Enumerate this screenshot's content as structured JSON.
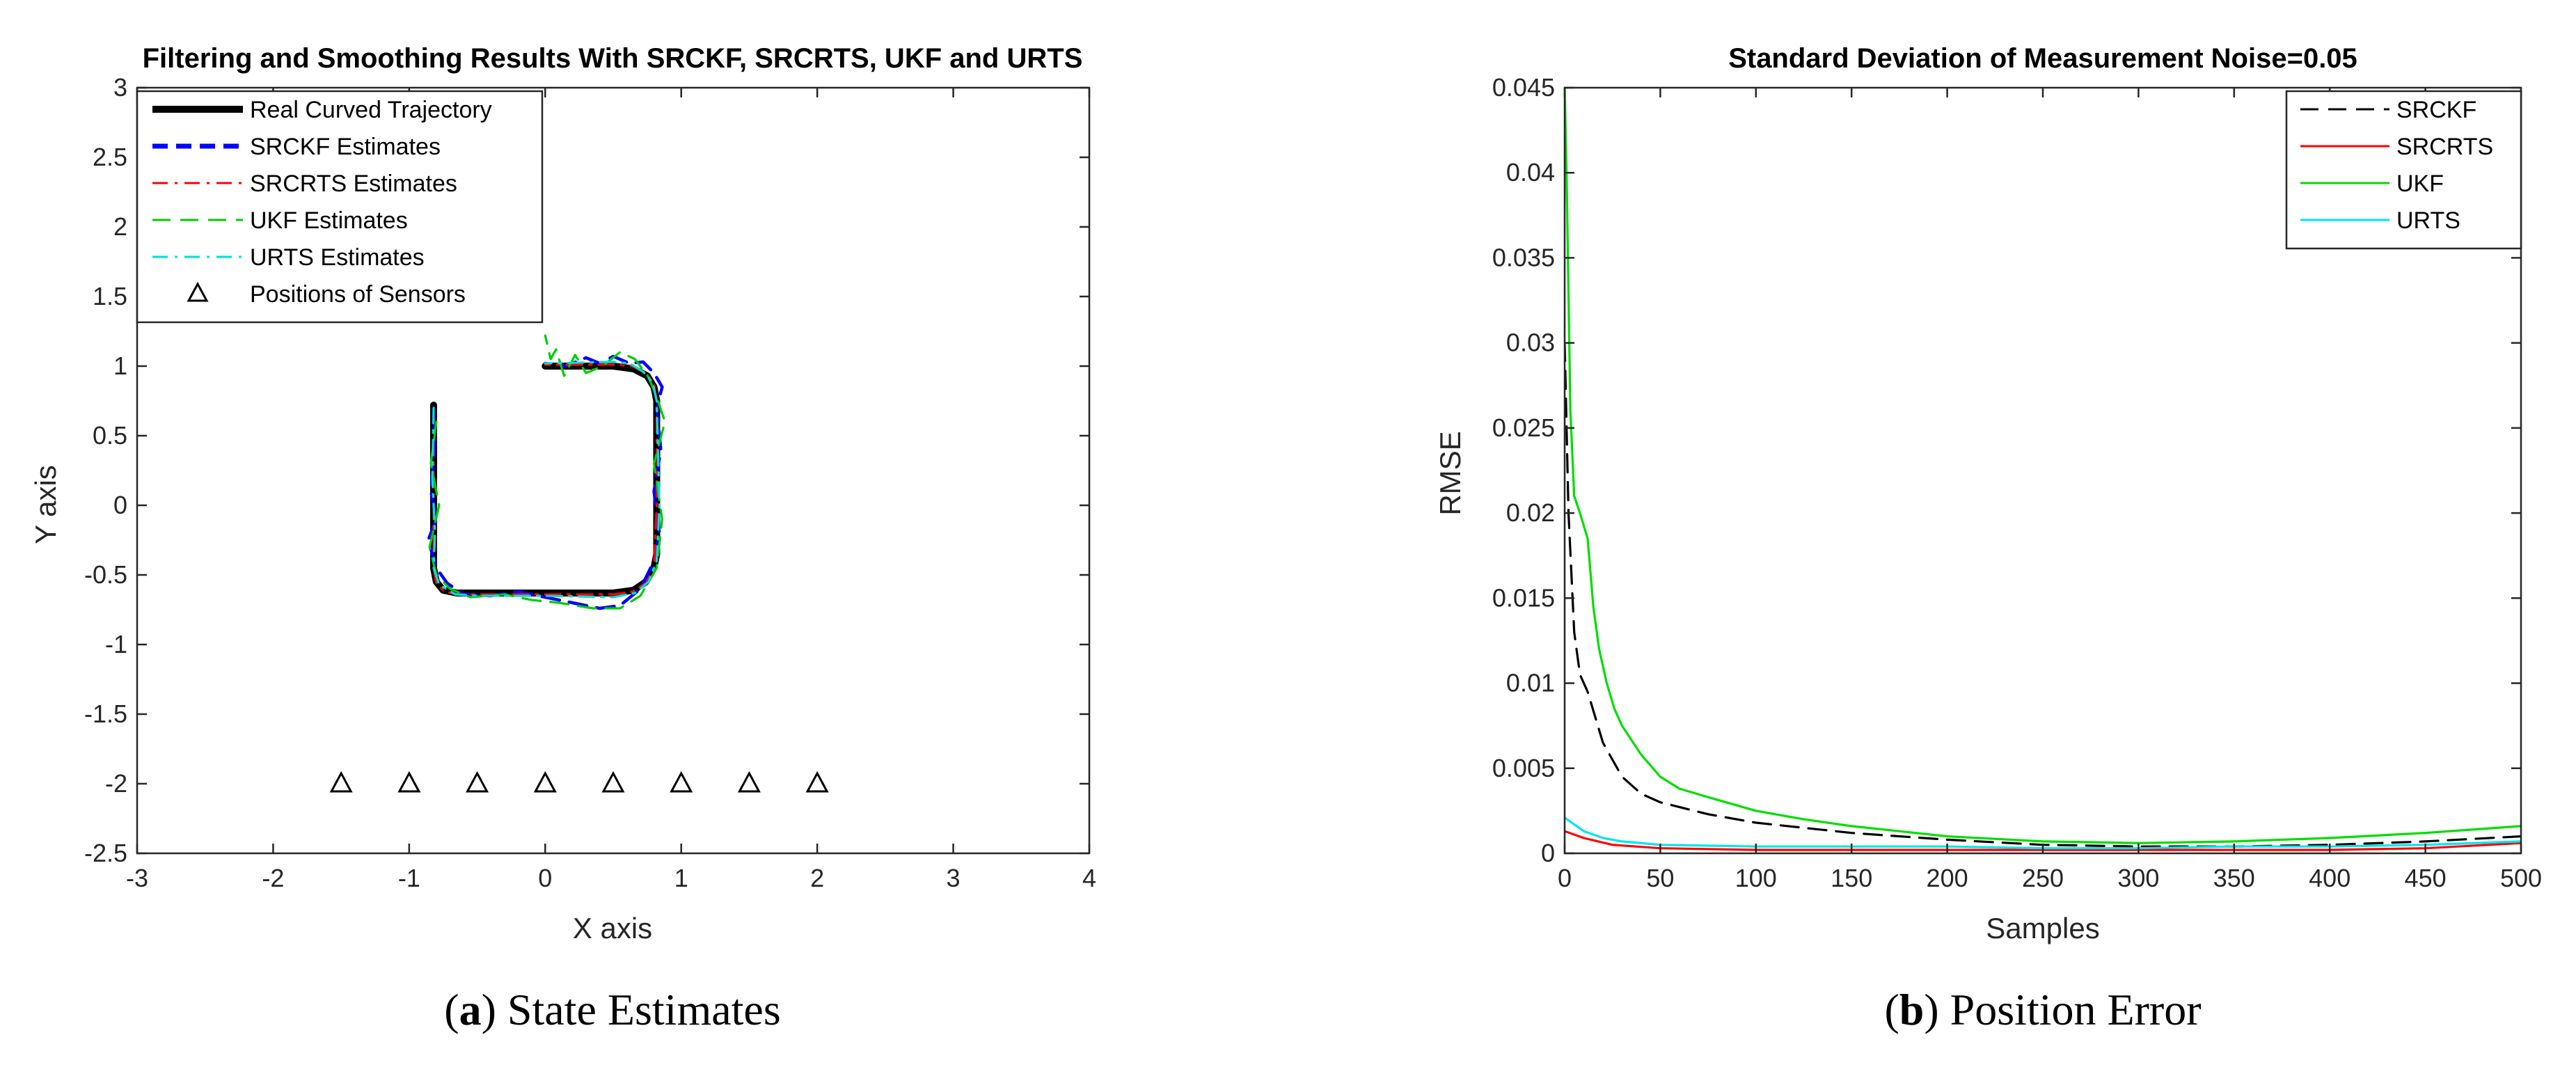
{
  "chart_data": [
    {
      "type": "line",
      "title": "Filtering and Smoothing Results With SRCKF, SRCRTS, UKF and URTS",
      "xlabel": "X axis",
      "ylabel": "Y axis",
      "xlim": [
        -3,
        4
      ],
      "ylim": [
        -2.5,
        3
      ],
      "xticks": [
        "-3",
        "-2",
        "-1",
        "0",
        "1",
        "2",
        "3",
        "4"
      ],
      "yticks": [
        "-2.5",
        "-2",
        "-1.5",
        "-1",
        "-0.5",
        "0",
        "0.5",
        "1",
        "1.5",
        "2",
        "2.5",
        "3"
      ],
      "grid": false,
      "legend_position": "top-left",
      "caption_label": "a",
      "caption_text": "State Estimates",
      "series": [
        {
          "name": "Real Curved Trajectory",
          "color": "#000000",
          "style": "solid",
          "x": [
            -0.82,
            -0.82,
            -0.82,
            -0.8,
            -0.75,
            -0.65,
            -0.5,
            0.0,
            0.5,
            0.65,
            0.74,
            0.8,
            0.82,
            0.82,
            0.82,
            0.8,
            0.75,
            0.65,
            0.5,
            0.0
          ],
          "y": [
            0.72,
            0.0,
            -0.45,
            -0.55,
            -0.61,
            -0.63,
            -0.63,
            -0.63,
            -0.63,
            -0.61,
            -0.55,
            -0.45,
            -0.35,
            0.0,
            0.75,
            0.85,
            0.93,
            0.98,
            1.0,
            1.0
          ]
        },
        {
          "name": "SRCKF Estimates",
          "color": "#0000ff",
          "style": "dashed",
          "x": [
            -0.82,
            -0.81,
            -0.84,
            -0.8,
            -0.86,
            -0.8,
            -0.72,
            -0.6,
            -0.4,
            -0.2,
            0.0,
            0.2,
            0.4,
            0.55,
            0.7,
            0.8,
            0.84,
            0.8,
            0.85,
            0.82,
            0.86,
            0.8,
            0.72,
            0.62,
            0.5,
            0.4,
            0.3,
            0.15,
            0.0
          ],
          "y": [
            0.68,
            0.4,
            0.1,
            -0.1,
            -0.25,
            -0.45,
            -0.56,
            -0.64,
            -0.65,
            -0.62,
            -0.66,
            -0.7,
            -0.74,
            -0.72,
            -0.6,
            -0.4,
            -0.2,
            0.1,
            0.4,
            0.7,
            0.85,
            0.95,
            1.03,
            1.02,
            1.07,
            1.02,
            1.06,
            1.0,
            1.02
          ]
        },
        {
          "name": "SRCRTS Estimates",
          "color": "#ff0000",
          "style": "dashdot",
          "x": [
            -0.82,
            -0.82,
            -0.82,
            -0.8,
            -0.74,
            -0.64,
            -0.5,
            0.0,
            0.5,
            0.64,
            0.74,
            0.8,
            0.82,
            0.82,
            0.8,
            0.74,
            0.64,
            0.5,
            0.0
          ],
          "y": [
            0.7,
            0.0,
            -0.45,
            -0.56,
            -0.62,
            -0.64,
            -0.64,
            -0.64,
            -0.64,
            -0.62,
            -0.56,
            -0.45,
            0.0,
            0.75,
            0.87,
            0.95,
            1.0,
            1.01,
            1.01
          ]
        },
        {
          "name": "UKF Estimates",
          "color": "#00cc00",
          "style": "dashed",
          "x": [
            -0.8,
            -0.84,
            -0.78,
            -0.85,
            -0.8,
            -0.7,
            -0.55,
            -0.3,
            -0.1,
            0.1,
            0.35,
            0.55,
            0.7,
            0.82,
            0.86,
            0.8,
            0.88,
            0.82,
            0.76,
            0.66,
            0.55,
            0.42,
            0.3,
            0.22,
            0.14,
            0.08,
            0.04,
            0.0
          ],
          "y": [
            0.6,
            0.3,
            0.0,
            -0.3,
            -0.5,
            -0.6,
            -0.66,
            -0.64,
            -0.68,
            -0.7,
            -0.74,
            -0.74,
            -0.65,
            -0.45,
            -0.1,
            0.3,
            0.6,
            0.78,
            0.92,
            1.05,
            1.1,
            1.0,
            0.95,
            1.08,
            0.93,
            1.12,
            1.05,
            1.22
          ]
        },
        {
          "name": "URTS Estimates",
          "color": "#00dddd",
          "style": "dashdot",
          "x": [
            -0.82,
            -0.83,
            -0.81,
            -0.82,
            -0.78,
            -0.66,
            -0.5,
            0.0,
            0.5,
            0.66,
            0.76,
            0.82,
            0.84,
            0.82,
            0.79,
            0.72,
            0.62,
            0.5,
            0.0
          ],
          "y": [
            0.7,
            0.2,
            -0.2,
            -0.45,
            -0.57,
            -0.64,
            -0.65,
            -0.65,
            -0.66,
            -0.63,
            -0.55,
            -0.4,
            0.0,
            0.75,
            0.88,
            0.96,
            1.02,
            1.03,
            1.02
          ]
        },
        {
          "name": "Positions of Sensors",
          "color": "#000000",
          "style": "markers",
          "marker": "triangle",
          "x": [
            -1.5,
            -1.0,
            -0.5,
            0.0,
            0.5,
            1.0,
            1.5,
            2.0
          ],
          "y": [
            -2,
            -2,
            -2,
            -2,
            -2,
            -2,
            -2,
            -2
          ]
        }
      ]
    },
    {
      "type": "line",
      "title": "Standard Deviation of Measurement Noise=0.05",
      "xlabel": "Samples",
      "ylabel": "RMSE",
      "xlim": [
        0,
        500
      ],
      "ylim": [
        0,
        0.045
      ],
      "xticks": [
        "0",
        "50",
        "100",
        "150",
        "200",
        "250",
        "300",
        "350",
        "400",
        "450",
        "500"
      ],
      "yticks": [
        "0",
        "0.005",
        "0.01",
        "0.015",
        "0.02",
        "0.025",
        "0.03",
        "0.035",
        "0.04",
        "0.045"
      ],
      "grid": false,
      "legend_position": "top-right",
      "caption_label": "b",
      "caption_text": "Position Error",
      "series": [
        {
          "name": "SRCKF",
          "color": "#000000",
          "style": "dashed",
          "x": [
            0,
            2,
            5,
            8,
            12,
            20,
            30,
            40,
            50,
            75,
            100,
            150,
            200,
            250,
            300,
            350,
            400,
            450,
            500
          ],
          "y": [
            0.03,
            0.02,
            0.013,
            0.0105,
            0.0095,
            0.0065,
            0.0045,
            0.0035,
            0.003,
            0.0023,
            0.0018,
            0.0012,
            0.0008,
            0.0005,
            0.0004,
            0.0004,
            0.0005,
            0.0007,
            0.001
          ]
        },
        {
          "name": "SRCRTS",
          "color": "#ff0000",
          "style": "solid",
          "x": [
            0,
            10,
            25,
            50,
            100,
            150,
            200,
            250,
            300,
            350,
            400,
            450,
            500
          ],
          "y": [
            0.0013,
            0.0009,
            0.0005,
            0.0003,
            0.0002,
            0.0002,
            0.0002,
            0.0002,
            0.0002,
            0.0002,
            0.0002,
            0.0003,
            0.0006
          ]
        },
        {
          "name": "UKF",
          "color": "#00dd00",
          "style": "solid",
          "x": [
            0,
            1,
            2,
            3,
            5,
            8,
            12,
            15,
            18,
            22,
            26,
            30,
            40,
            50,
            60,
            75,
            100,
            125,
            150,
            200,
            250,
            300,
            350,
            400,
            450,
            500
          ],
          "y": [
            0.045,
            0.04,
            0.033,
            0.026,
            0.021,
            0.02,
            0.0185,
            0.0145,
            0.012,
            0.01,
            0.0085,
            0.0075,
            0.0058,
            0.0045,
            0.0038,
            0.0033,
            0.0025,
            0.002,
            0.0016,
            0.001,
            0.0007,
            0.0006,
            0.0007,
            0.0009,
            0.0012,
            0.0016
          ]
        },
        {
          "name": "URTS",
          "color": "#00e5ee",
          "style": "solid",
          "x": [
            0,
            5,
            10,
            20,
            30,
            50,
            100,
            150,
            200,
            250,
            300,
            350,
            400,
            450,
            500
          ],
          "y": [
            0.0021,
            0.0017,
            0.0013,
            0.0009,
            0.0007,
            0.0005,
            0.0004,
            0.0004,
            0.0004,
            0.0003,
            0.0003,
            0.0004,
            0.0004,
            0.0005,
            0.0007
          ]
        }
      ]
    }
  ]
}
